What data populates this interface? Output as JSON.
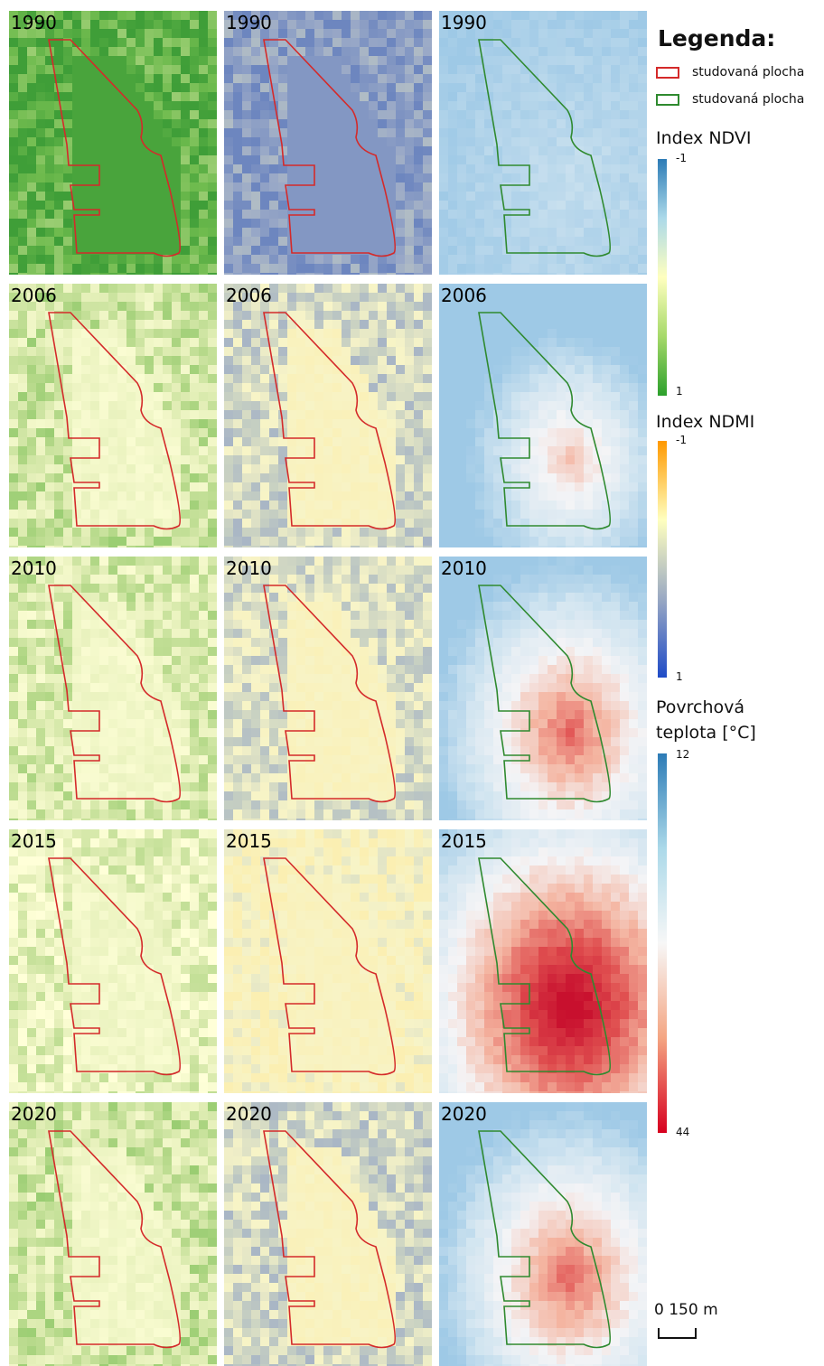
{
  "years": [
    "1990",
    "2006",
    "2010",
    "2015",
    "2020"
  ],
  "layers": [
    {
      "name": "ndvi",
      "outline_color": "#d42a2a"
    },
    {
      "name": "ndmi",
      "outline_color": "#d42a2a"
    },
    {
      "name": "lst",
      "outline_color": "#2f8a2f"
    }
  ],
  "legend": {
    "title": "Legenda:",
    "items": [
      {
        "label": "studovaná plocha",
        "color": "#d42a2a"
      },
      {
        "label": "studovaná plocha",
        "color": "#2f8a2f"
      }
    ],
    "ndvi": {
      "title": "Index NDVI",
      "min": "-1",
      "max": "1",
      "colors": [
        "#2c7bb6",
        "#abd9e9",
        "#ffffbf",
        "#a6d96a",
        "#2ca02c"
      ]
    },
    "ndmi": {
      "title": "Index NDMI",
      "min": "-1",
      "max": "1",
      "colors": [
        "#ff9900",
        "#ffffbf",
        "#9aa9c3",
        "#1f4bc7"
      ]
    },
    "lst": {
      "title_line1": "Povrchová",
      "title_line2": "teplota [°C]",
      "min": "12",
      "max": "44",
      "colors": [
        "#2c7bb6",
        "#abd9e9",
        "#f7f7f7",
        "#f4a582",
        "#d7001f"
      ]
    },
    "scale_label": "0  150 m"
  }
}
